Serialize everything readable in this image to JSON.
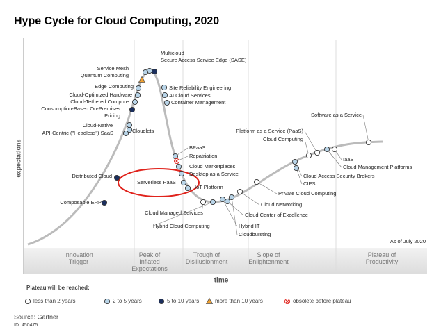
{
  "title": "Hype Cycle for Cloud Computing, 2020",
  "y_axis_label": "expectations",
  "x_axis_label": "time",
  "as_of": "As of July 2020",
  "phases": [
    "Innovation Trigger",
    "Peak of Inflated Expectations",
    "Trough of Disillusionment",
    "Slope of Enlightenment",
    "Plateau of Productivity"
  ],
  "legend": {
    "title": "Plateau will be reached:",
    "items": [
      "less than 2 years",
      "2 to 5 years",
      "5 to 10 years",
      "more than 10 years",
      "obsolete before plateau"
    ]
  },
  "source": "Source: Gartner",
  "id": "ID: 450475",
  "nodes": [
    {
      "label": "Multicloud",
      "legend_item": 1
    },
    {
      "label": "Secure Access Service Edge (SASE)",
      "legend_item": 2
    },
    {
      "label": "Service Mesh",
      "legend_item": 1
    },
    {
      "label": "Quantum Computing",
      "legend_item": 3
    },
    {
      "label": "Edge Computing",
      "legend_item": 1
    },
    {
      "label": "Cloud-Optimized Hardware",
      "legend_item": 1
    },
    {
      "label": "Cloud-Tethered Compute",
      "legend_item": 1
    },
    {
      "label": [
        "Consumption-Based On-Premises",
        "Pricing"
      ],
      "legend_item": 2
    },
    {
      "label": "Cloud-Native",
      "legend_item": 1
    },
    {
      "label": "API-Centric (\"Headless\") SaaS",
      "legend_item": 1
    },
    {
      "label": "Cloudlets",
      "legend_item": 1
    },
    {
      "label": "Distributed Cloud",
      "legend_item": 2
    },
    {
      "label": "Composable ERP",
      "legend_item": 2
    },
    {
      "label": "Site Reliability Engineering",
      "legend_item": 1
    },
    {
      "label": "AI Cloud Services",
      "legend_item": 1
    },
    {
      "label": "Container Management",
      "legend_item": 1
    },
    {
      "label": "BPaaS",
      "legend_item": 1
    },
    {
      "label": "Repatriation",
      "legend_item": 4
    },
    {
      "label": "Cloud Marketplaces",
      "legend_item": 1
    },
    {
      "label": "Desktop as a Service",
      "legend_item": 1
    },
    {
      "label": "Serverless PaaS",
      "legend_item": 1
    },
    {
      "label": "IoT Platform",
      "legend_item": 1
    },
    {
      "label": "Cloud Managed Services",
      "legend_item": 0
    },
    {
      "label": "Hybrid Cloud Computing",
      "legend_item": 1
    },
    {
      "label": "Hybrid IT",
      "legend_item": 1
    },
    {
      "label": "Cloudbursting",
      "legend_item": 1
    },
    {
      "label": "Cloud Center of Excellence",
      "legend_item": 1
    },
    {
      "label": "Cloud Networking",
      "legend_item": 0
    },
    {
      "label": "Private Cloud Computing",
      "legend_item": 0
    },
    {
      "label": "Platform as a Service (PaaS)",
      "legend_item": 0
    },
    {
      "label": "Cloud Computing",
      "legend_item": 0
    },
    {
      "label": "Cloud Access Security Brokers",
      "legend_item": 1
    },
    {
      "label": "CIPS",
      "legend_item": 1
    },
    {
      "label": "Software as a Service",
      "legend_item": 0
    },
    {
      "label": "IaaS",
      "legend_item": 0
    },
    {
      "label": "Cloud Management Platforms",
      "legend_item": 1
    }
  ]
}
